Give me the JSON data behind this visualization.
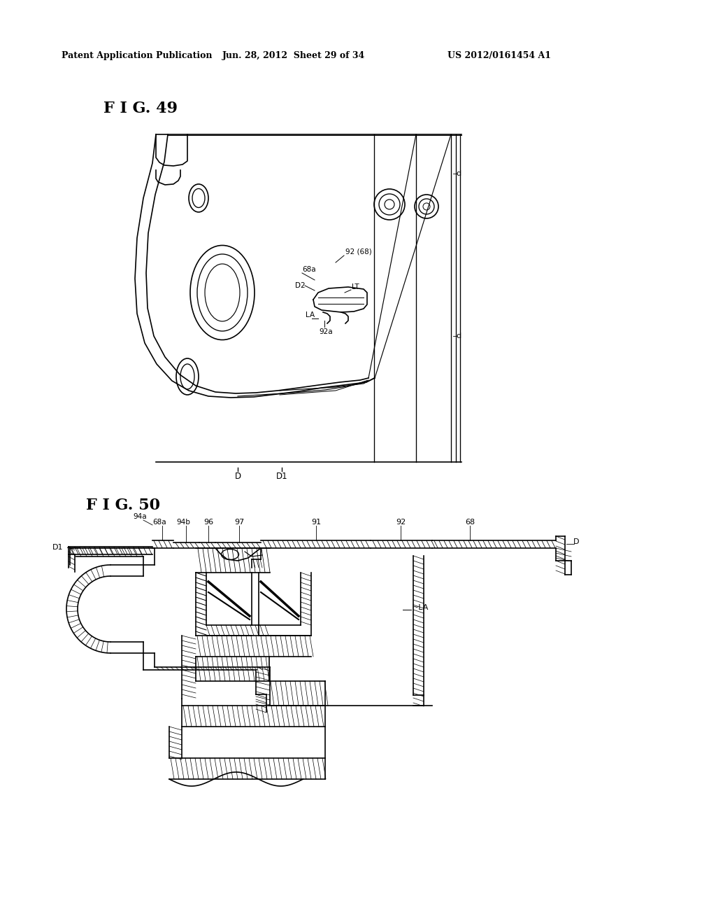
{
  "background_color": "#ffffff",
  "header_left": "Patent Application Publication",
  "header_mid": "Jun. 28, 2012  Sheet 29 of 34",
  "header_right": "US 2012/0161454 A1",
  "fig49_label": "F I G. 49",
  "fig50_label": "F I G. 50",
  "header_fontsize": 9,
  "fig_label_fontsize": 16,
  "line_color": "#000000"
}
